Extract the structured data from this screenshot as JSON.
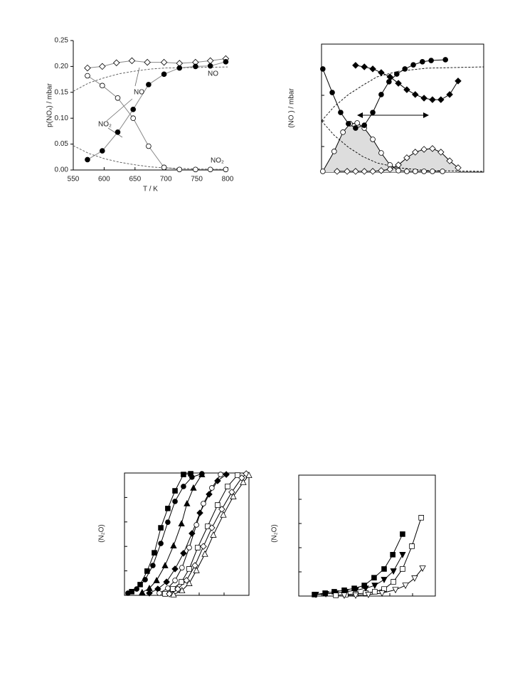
{
  "chart_data": [
    {
      "type": "line",
      "frame": "axes",
      "tick_labels": true,
      "x_label": "T / K",
      "y_label": "p(NOₓ) / mbar",
      "xlim": [
        550,
        800
      ],
      "xticks": [
        550,
        600,
        650,
        700,
        750,
        800
      ],
      "ylim": [
        0,
        0.25
      ],
      "yticks": [
        {
          "value": 0,
          "label": "0.00"
        },
        0.05,
        {
          "value": 0.1,
          "label": "0.10"
        },
        0.15,
        {
          "value": 0.2,
          "label": "0.20"
        },
        0.25
      ],
      "annotations": [
        "NO",
        "NO",
        "NO₂",
        "NO₂"
      ],
      "series": [
        {
          "color": "#888888",
          "marker": "diamond",
          "marker_fill": "#ffffff",
          "x": [
            573,
            597,
            620,
            645,
            670,
            697,
            722,
            748,
            772,
            797
          ],
          "values": [
            0.197,
            0.2,
            0.207,
            0.211,
            0.208,
            0.208,
            0.206,
            0.208,
            0.211,
            0.215
          ]
        },
        {
          "color": "#888888",
          "marker": "circle",
          "marker_fill": "#000000",
          "x": [
            573,
            597,
            622,
            647,
            672,
            697,
            722,
            748,
            772,
            797
          ],
          "values": [
            0.02,
            0.037,
            0.073,
            0.117,
            0.165,
            0.185,
            0.197,
            0.2,
            0.201,
            0.209
          ]
        },
        {
          "color": "#888888",
          "marker": "circle",
          "marker_fill": "#ffffff",
          "x": [
            573,
            597,
            622,
            647,
            672,
            697,
            722,
            748,
            772,
            797
          ],
          "values": [
            0.182,
            0.163,
            0.139,
            0.1,
            0.046,
            0.005,
            0.001,
            0.001,
            0.001,
            0.001
          ]
        },
        {
          "color": "#555555",
          "dash": true,
          "x": [
            550,
            575,
            600,
            625,
            650,
            675,
            700,
            750,
            800
          ],
          "values": [
            0.152,
            0.168,
            0.178,
            0.186,
            0.191,
            0.195,
            0.197,
            0.198,
            0.199
          ]
        },
        {
          "color": "#555555",
          "dash": true,
          "x": [
            550,
            575,
            600,
            625,
            650,
            675,
            700,
            750,
            800
          ],
          "values": [
            0.047,
            0.032,
            0.022,
            0.015,
            0.01,
            0.006,
            0.004,
            0.002,
            0.001
          ]
        }
      ]
    },
    {
      "type": "line",
      "frame": "box",
      "tick_labels": false,
      "y_label": "(NO ) / mbar",
      "xlim": [
        0,
        5
      ],
      "xticks": [
        0,
        1,
        2,
        3,
        4,
        5
      ],
      "ylim": [
        0,
        5
      ],
      "yticks": [
        0,
        1,
        2,
        3,
        4,
        5
      ],
      "series": [
        {
          "color": "#000000",
          "dash": true,
          "x": [
            0,
            0.39,
            0.83,
            1.27,
            1.71,
            2.37,
            3.25,
            5
          ],
          "values": [
            2.0,
            1.44,
            0.97,
            0.61,
            0.36,
            0.17,
            0.06,
            0.03
          ]
        },
        {
          "color": "#000000",
          "dash": true,
          "x": [
            0,
            0.39,
            0.83,
            1.27,
            1.71,
            2.37,
            3.25,
            5
          ],
          "values": [
            2.0,
            2.56,
            3.03,
            3.39,
            3.72,
            3.94,
            4.06,
            4.11
          ]
        },
        {
          "color": "#000000",
          "marker": "circle",
          "marker_fill": "#ffffff",
          "fill": "#dddddd",
          "x": [
            0.04,
            0.39,
            0.66,
            0.88,
            1.1,
            1.32,
            1.58,
            1.84,
            2.11,
            2.37,
            2.63,
            2.89,
            3.16,
            3.42,
            3.73
          ],
          "values": [
            0.03,
            0.81,
            1.56,
            1.89,
            1.92,
            1.72,
            1.28,
            0.75,
            0.28,
            0.06,
            0.03,
            0.03,
            0.03,
            0.03,
            0.03
          ]
        },
        {
          "color": "#000000",
          "marker": "diamond",
          "marker_fill": "#ffffff",
          "fill": "#dddddd",
          "x": [
            0.48,
            0.79,
            1.05,
            1.32,
            1.58,
            1.84,
            2.11,
            2.37,
            2.63,
            2.89,
            3.16,
            3.42,
            3.68,
            3.95,
            4.21
          ],
          "values": [
            0.03,
            0.03,
            0.03,
            0.03,
            0.03,
            0.06,
            0.11,
            0.28,
            0.56,
            0.78,
            0.89,
            0.92,
            0.78,
            0.44,
            0.17
          ]
        },
        {
          "color": "#000000",
          "marker": "circle",
          "marker_fill": "#000000",
          "x": [
            0.04,
            0.33,
            0.59,
            0.83,
            1.05,
            1.32,
            1.58,
            1.84,
            2.08,
            2.32,
            2.57,
            2.83,
            3.11,
            3.38,
            3.82
          ],
          "values": [
            4.03,
            3.11,
            2.33,
            1.89,
            1.72,
            1.83,
            2.33,
            3.03,
            3.53,
            3.83,
            4.03,
            4.19,
            4.31,
            4.36,
            4.39
          ]
        },
        {
          "color": "#000000",
          "marker": "diamond",
          "marker_fill": "#000000",
          "x": [
            1.05,
            1.32,
            1.58,
            1.84,
            2.11,
            2.37,
            2.63,
            2.89,
            3.16,
            3.42,
            3.68,
            3.95,
            4.21
          ],
          "values": [
            4.17,
            4.11,
            4.03,
            3.89,
            3.72,
            3.47,
            3.22,
            3.03,
            2.89,
            2.83,
            2.83,
            3.03,
            3.56
          ]
        }
      ]
    },
    {
      "type": "line",
      "frame": "box",
      "tick_labels": false,
      "y_label": "(N₂O)",
      "xlim": [
        0,
        5
      ],
      "xticks": [
        0,
        1,
        2,
        3,
        4,
        5
      ],
      "ylim": [
        0,
        5
      ],
      "yticks": [
        0,
        1,
        2,
        3,
        4,
        5
      ],
      "series": [
        {
          "color": "#000000",
          "marker": "square",
          "marker_fill": "#000000",
          "x": [
            0.29,
            0.63,
            0.91,
            1.2,
            1.46,
            1.74,
            2.03,
            2.37,
            2.66
          ],
          "values": [
            0.15,
            0.44,
            0.99,
            1.74,
            2.76,
            3.55,
            4.27,
            4.94,
            4.97
          ]
        },
        {
          "color": "#000000",
          "marker": "circle",
          "marker_fill": "#000000",
          "x": [
            0.14,
            0.49,
            0.83,
            1.14,
            1.46,
            1.74,
            2.03,
            2.37,
            2.71,
            3.11
          ],
          "values": [
            0.09,
            0.26,
            0.64,
            1.22,
            2.12,
            2.99,
            3.84,
            4.45,
            4.83,
            4.97
          ]
        },
        {
          "color": "#000000",
          "marker": "triangle",
          "marker_fill": "#000000",
          "x": [
            0.71,
            1.0,
            1.29,
            1.63,
            1.97,
            2.29,
            2.51,
            2.77,
            3.11
          ],
          "values": [
            0.12,
            0.29,
            0.61,
            1.22,
            2.03,
            2.93,
            3.75,
            4.39,
            4.94
          ]
        },
        {
          "color": "#000000",
          "marker": "diamond",
          "marker_fill": "#000000",
          "x": [
            1.0,
            1.34,
            1.69,
            2.03,
            2.37,
            2.71,
            3.03,
            3.4,
            3.74,
            4.09
          ],
          "values": [
            0.09,
            0.26,
            0.55,
            1.08,
            1.72,
            2.53,
            3.37,
            4.13,
            4.68,
            4.94
          ]
        },
        {
          "color": "#000000",
          "marker": "circle",
          "marker_fill": "#ffffff",
          "x": [
            1.4,
            1.74,
            2.03,
            2.31,
            2.6,
            2.89,
            3.17,
            3.51,
            3.86
          ],
          "values": [
            0.09,
            0.29,
            0.61,
            1.13,
            1.95,
            2.88,
            3.75,
            4.39,
            4.94
          ]
        },
        {
          "color": "#000000",
          "marker": "square",
          "marker_fill": "#ffffff",
          "x": [
            1.63,
            1.94,
            2.29,
            2.6,
            2.94,
            3.34,
            3.74,
            4.14,
            4.54
          ],
          "values": [
            0.06,
            0.26,
            0.55,
            1.08,
            1.95,
            2.82,
            3.69,
            4.45,
            4.91
          ]
        },
        {
          "color": "#000000",
          "marker": "diamond",
          "marker_fill": "#ffffff",
          "x": [
            1.8,
            2.14,
            2.49,
            2.83,
            3.17,
            3.51,
            3.91,
            4.31,
            4.71,
            4.89
          ],
          "values": [
            0.06,
            0.26,
            0.61,
            1.22,
            2.0,
            2.76,
            3.52,
            4.22,
            4.8,
            4.97
          ]
        },
        {
          "color": "#000000",
          "marker": "triangle",
          "marker_fill": "#ffffff",
          "x": [
            1.97,
            2.31,
            2.6,
            2.89,
            3.23,
            3.57,
            3.97,
            4.37,
            4.77,
            5.0
          ],
          "values": [
            0.03,
            0.2,
            0.49,
            1.02,
            1.69,
            2.47,
            3.29,
            4.04,
            4.62,
            4.91
          ]
        }
      ]
    },
    {
      "type": "line",
      "frame": "box",
      "tick_labels": false,
      "y_label": "(N₂O)",
      "xlim": [
        0,
        6
      ],
      "xticks": [
        0,
        1,
        2,
        3,
        4,
        5,
        6
      ],
      "ylim": [
        0,
        5
      ],
      "yticks": [
        0,
        1,
        2,
        3,
        4,
        5
      ],
      "series": [
        {
          "color": "#000000",
          "marker": "square",
          "marker_fill": "#000000",
          "x": [
            0.69,
            1.16,
            1.56,
            2.0,
            2.44,
            2.88,
            3.31,
            3.75,
            4.13,
            4.56
          ],
          "values": [
            0.06,
            0.12,
            0.18,
            0.24,
            0.32,
            0.44,
            0.76,
            1.12,
            1.71,
            2.56
          ]
        },
        {
          "color": "#000000",
          "marker": "triangle-down",
          "marker_fill": "#000000",
          "x": [
            0.75,
            1.19,
            1.63,
            2.06,
            2.5,
            2.94,
            3.34,
            3.75,
            4.16,
            4.56
          ],
          "values": [
            0.06,
            0.09,
            0.12,
            0.18,
            0.24,
            0.32,
            0.44,
            0.68,
            1.03,
            1.71
          ]
        },
        {
          "color": "#000000",
          "marker": "square",
          "marker_fill": "#ffffff",
          "x": [
            1.63,
            2.06,
            2.5,
            2.94,
            3.34,
            3.75,
            4.16,
            4.56,
            4.97,
            5.38
          ],
          "values": [
            0.03,
            0.06,
            0.09,
            0.12,
            0.18,
            0.29,
            0.59,
            1.12,
            2.06,
            3.24
          ]
        },
        {
          "color": "#000000",
          "marker": "triangle-down",
          "marker_fill": "#ffffff",
          "x": [
            2.0,
            2.5,
            3.06,
            3.66,
            4.25,
            4.69,
            5.09,
            5.44
          ],
          "values": [
            0.03,
            0.03,
            0.06,
            0.12,
            0.26,
            0.44,
            0.74,
            1.15
          ]
        }
      ]
    }
  ]
}
